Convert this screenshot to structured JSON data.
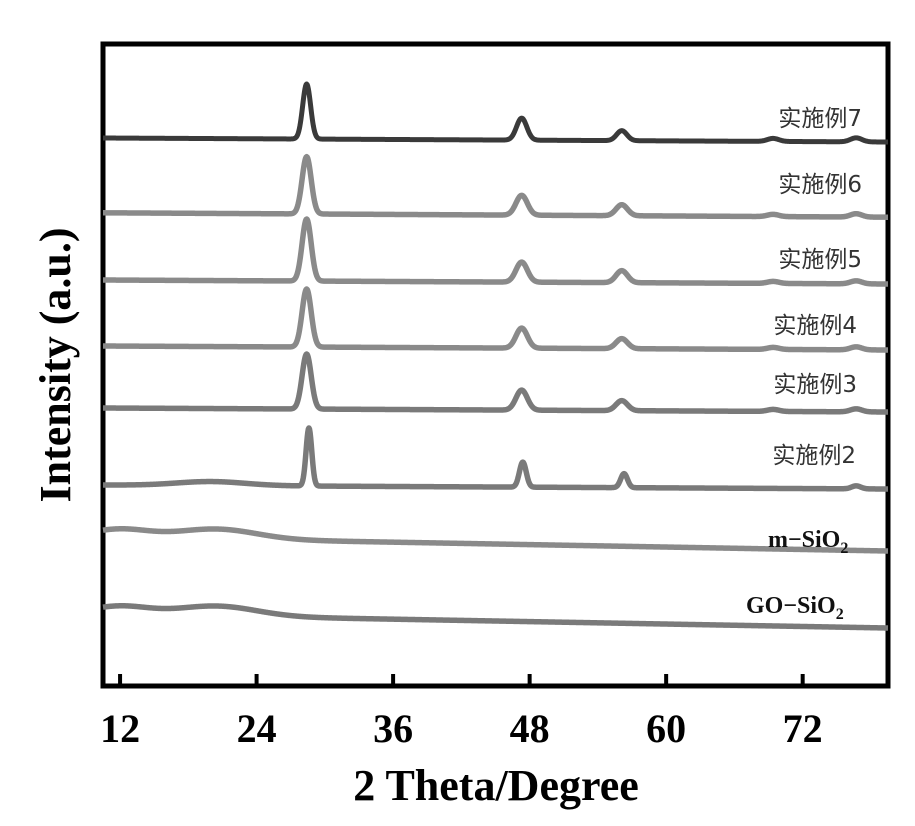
{
  "chart_data": {
    "type": "line",
    "xlabel": "2 Theta/Degree",
    "ylabel": "Intensity (a.u.)",
    "xlim": [
      10.5,
      79.5
    ],
    "xticks": [
      12,
      24,
      36,
      48,
      60,
      72
    ],
    "yticks": [],
    "grid": false,
    "legend": "inline-right",
    "series": [
      {
        "name": "实施例7",
        "color": "#3a3a3a",
        "kind": "crystalline",
        "scale": 1.0,
        "peaks": [
          [
            28.4,
            55,
            0.35
          ],
          [
            47.3,
            22,
            0.45
          ],
          [
            56.1,
            10,
            0.45
          ],
          [
            69.4,
            3,
            0.5
          ],
          [
            76.7,
            4,
            0.5
          ]
        ]
      },
      {
        "name": "实施例6",
        "color": "#8a8a8a",
        "kind": "crystalline",
        "scale": 1.0,
        "peaks": [
          [
            28.4,
            52,
            0.4
          ],
          [
            47.3,
            18,
            0.5
          ],
          [
            56.1,
            10,
            0.5
          ],
          [
            69.4,
            2,
            0.5
          ],
          [
            76.7,
            3,
            0.5
          ]
        ]
      },
      {
        "name": "实施例5",
        "color": "#8a8a8a",
        "kind": "crystalline",
        "scale": 1.0,
        "peaks": [
          [
            28.4,
            62,
            0.4
          ],
          [
            47.3,
            20,
            0.5
          ],
          [
            56.1,
            12,
            0.5
          ],
          [
            69.4,
            2,
            0.5
          ],
          [
            76.7,
            3,
            0.5
          ]
        ]
      },
      {
        "name": "实施例4",
        "color": "#8a8a8a",
        "kind": "crystalline",
        "scale": 1.0,
        "peaks": [
          [
            28.4,
            58,
            0.4
          ],
          [
            47.3,
            20,
            0.5
          ],
          [
            56.1,
            10,
            0.5
          ],
          [
            69.4,
            2,
            0.5
          ],
          [
            76.7,
            3,
            0.5
          ]
        ]
      },
      {
        "name": "实施例3",
        "color": "#7a7a7a",
        "kind": "crystalline",
        "scale": 1.0,
        "peaks": [
          [
            28.4,
            55,
            0.4
          ],
          [
            47.3,
            20,
            0.5
          ],
          [
            56.1,
            10,
            0.5
          ],
          [
            69.4,
            2,
            0.5
          ],
          [
            76.7,
            3,
            0.5
          ]
        ]
      },
      {
        "name": "实施例2",
        "color": "#7a7a7a",
        "kind": "crystalline",
        "scale": 1.0,
        "peaks": [
          [
            28.6,
            58,
            0.25
          ],
          [
            47.4,
            25,
            0.3
          ],
          [
            56.3,
            14,
            0.3
          ],
          [
            76.7,
            3,
            0.4
          ]
        ]
      },
      {
        "name": "m−SiO₂",
        "color": "#8a8a8a",
        "kind": "amorphous",
        "scale": 1.0,
        "peaks": []
      },
      {
        "name": "GO−SiO₂",
        "color": "#7a7a7a",
        "kind": "amorphous",
        "scale": 1.0,
        "peaks": []
      }
    ]
  },
  "labels": {
    "s0": "实施例7",
    "s1": "实施例6",
    "s2": "实施例5",
    "s3": "实施例4",
    "s4": "实施例3",
    "s5": "实施例2",
    "s6_main": "m−SiO",
    "s6_sub": "2",
    "s7_main": "GO−SiO",
    "s7_sub": "2"
  }
}
